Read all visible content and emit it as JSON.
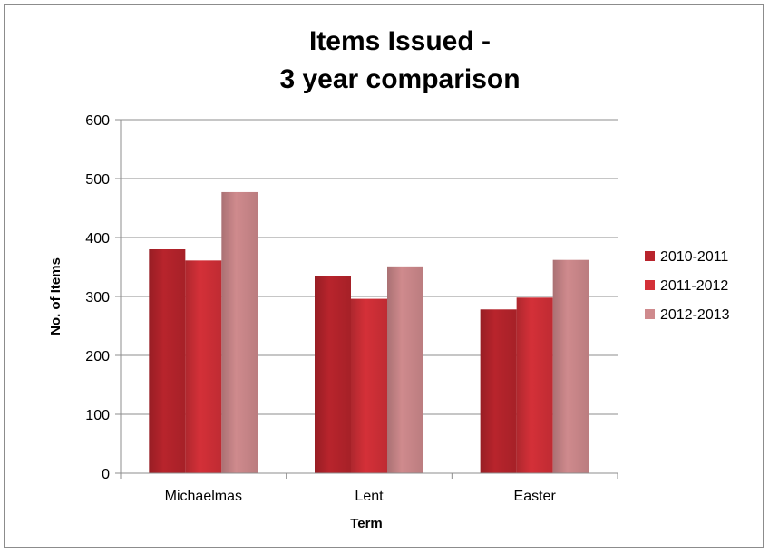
{
  "chart_data": {
    "type": "bar",
    "title_lines": [
      "Items Issued -",
      "3 year comparison"
    ],
    "xlabel": "Term",
    "ylabel": "No. of Items",
    "categories": [
      "Michaelmas",
      "Lent",
      "Easter"
    ],
    "series": [
      {
        "name": "2010-2011",
        "values": [
          380,
          335,
          278
        ],
        "color": "#b8242c"
      },
      {
        "name": "2011-2012",
        "values": [
          361,
          296,
          298
        ],
        "color": "#d43038"
      },
      {
        "name": "2012-2013",
        "values": [
          477,
          351,
          362
        ],
        "color": "#cf8a8d"
      }
    ],
    "ylim": [
      0,
      600
    ],
    "yticks": [
      0,
      100,
      200,
      300,
      400,
      500,
      600
    ],
    "grid": true,
    "legend": "right"
  }
}
